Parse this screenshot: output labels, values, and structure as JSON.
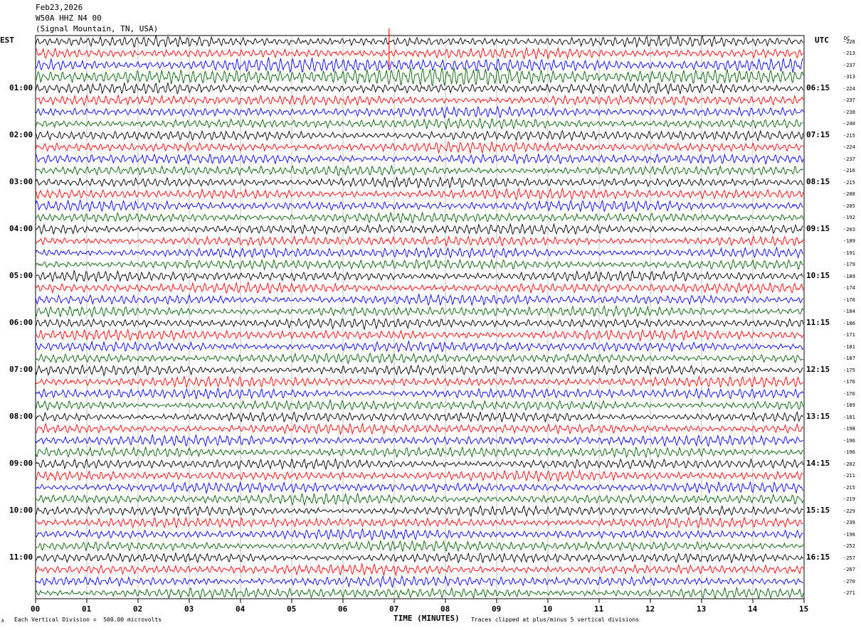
{
  "header": {
    "date": "Feb23,2026",
    "station": "W50A HHZ N4 00",
    "location": "(Signal Mountain, TN, USA)"
  },
  "left_tz": "EST",
  "right_tz": "UTC",
  "dc_header": "DC",
  "footer": {
    "xlabel": "TIME (MINUTES)",
    "scale_note": "Each Vertical Division =  500.00 microvolts",
    "clip_note": "Traces clipped at plus/minus 5 vertical divisions",
    "corner_mark": "A"
  },
  "colors": {
    "trace_cycle": [
      "#000000",
      "#ff0000",
      "#0000ff",
      "#006400"
    ]
  },
  "chart_data": {
    "type": "line",
    "title": "",
    "xlabel": "TIME (MINUTES)",
    "x_ticks": [
      "00",
      "01",
      "02",
      "03",
      "04",
      "05",
      "06",
      "07",
      "08",
      "09",
      "10",
      "11",
      "12",
      "13",
      "14",
      "15"
    ],
    "xlim": [
      0,
      15
    ],
    "grid": "vertical lines at each minute",
    "rows_per_hour": 4,
    "row_count": 48,
    "est_hour_labels": [
      "01:00",
      "02:00",
      "03:00",
      "04:00",
      "05:00",
      "06:00",
      "07:00",
      "08:00",
      "09:00",
      "10:00",
      "11:00"
    ],
    "utc_hour_labels": [
      "06:15",
      "07:15",
      "08:15",
      "09:15",
      "10:15",
      "11:15",
      "12:15",
      "13:15",
      "14:15",
      "15:15",
      "16:15"
    ],
    "dc_offsets": [
      -226,
      -213,
      -237,
      -313,
      -224,
      -237,
      -238,
      -240,
      -215,
      -224,
      -237,
      -216,
      -215,
      -208,
      -205,
      -192,
      -203,
      -189,
      -191,
      -179,
      -189,
      -174,
      -176,
      -184,
      -186,
      -171,
      -181,
      -187,
      -175,
      -176,
      -176,
      -189,
      -181,
      -198,
      -196,
      -196,
      -202,
      -211,
      -215,
      -219,
      -229,
      -239,
      -196,
      -252,
      -257,
      -267,
      -270,
      -271
    ]
  }
}
